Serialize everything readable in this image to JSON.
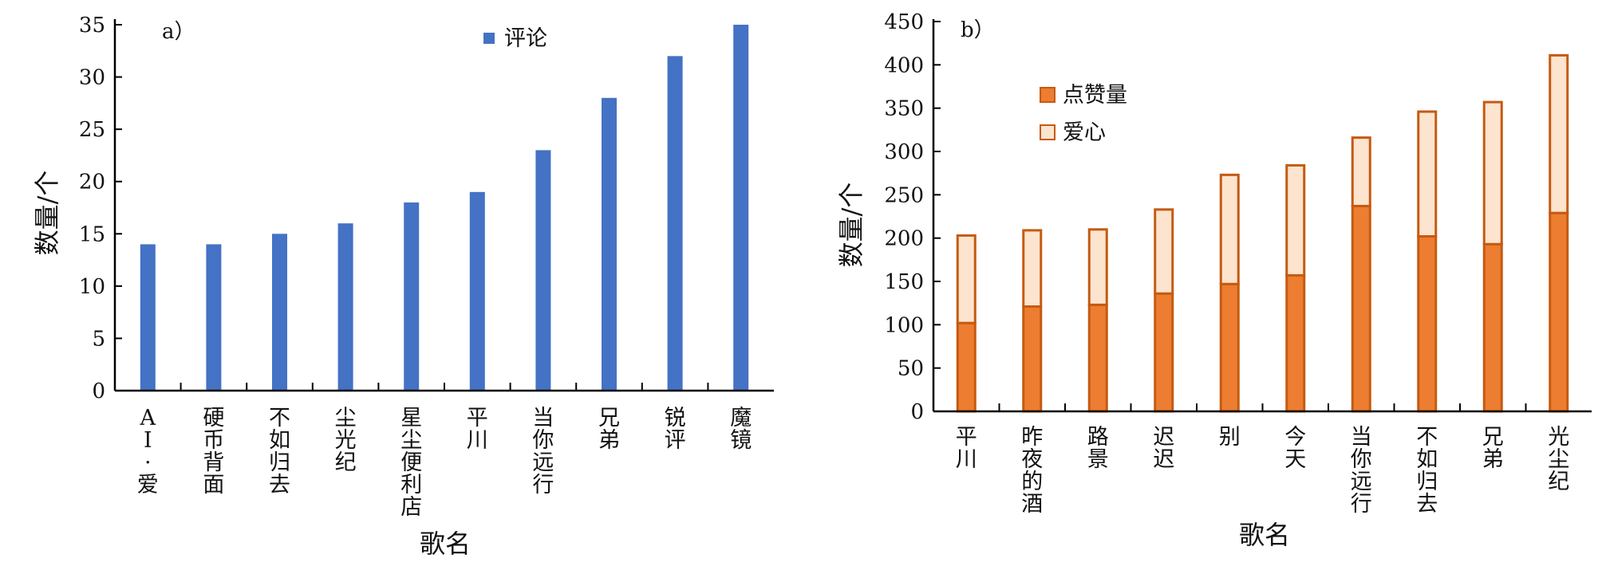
{
  "chart_data": [
    {
      "type": "bar",
      "panel_label": "a）",
      "categories": [
        "AI·爱",
        "硬币背面",
        "不如归去",
        "尘光纪",
        "星尘便利店",
        "平川",
        "当你远行",
        "兄弟",
        "锐评",
        "魔镜"
      ],
      "series": [
        {
          "name": "评论",
          "values": [
            14,
            14,
            15,
            16,
            18,
            19,
            23,
            28,
            32,
            35
          ],
          "color": "#4472C4"
        }
      ],
      "xlabel": "歌名",
      "ylabel": "数量/个",
      "ylim": [
        0,
        35
      ],
      "yticks": [
        "0",
        "5",
        "10",
        "15",
        "20",
        "25",
        "30",
        "35"
      ],
      "legend_position": "top-right",
      "grid": false
    },
    {
      "type": "bar",
      "stacked": true,
      "panel_label": "b）",
      "categories": [
        "平川",
        "昨夜的酒",
        "路景",
        "迟迟",
        "别",
        "今天",
        "当你远行",
        "不如归去",
        "兄弟",
        "光尘纪"
      ],
      "series": [
        {
          "name": "点赞量",
          "values": [
            102,
            121,
            123,
            136,
            147,
            157,
            237,
            202,
            193,
            229
          ],
          "color": "#ED7D31",
          "stroke": "#C55A11"
        },
        {
          "name": "爱心",
          "values": [
            101,
            88,
            87,
            97,
            126,
            127,
            79,
            144,
            164,
            182
          ],
          "color": "#FCE4CF",
          "stroke": "#C55A11"
        }
      ],
      "xlabel": "歌名",
      "ylabel": "数量/个",
      "ylim": [
        0,
        450
      ],
      "yticks": [
        "0",
        "50",
        "100",
        "150",
        "200",
        "250",
        "300",
        "350",
        "400",
        "450"
      ],
      "legend_position": "top-left",
      "grid": false
    }
  ]
}
